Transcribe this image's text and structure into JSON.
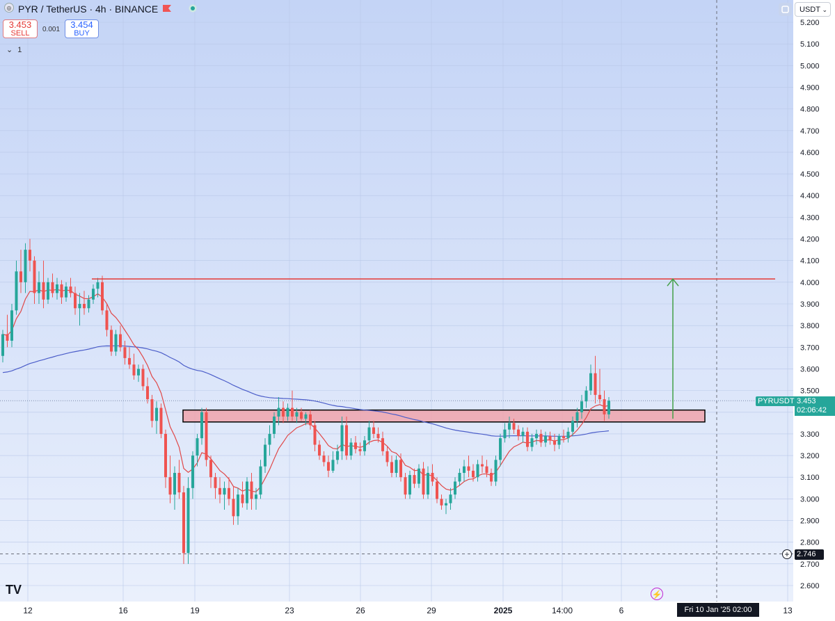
{
  "header": {
    "symbol": "PYR / TetherUS",
    "interval": "4h",
    "exchange": "BINANCE",
    "title_text": "PYR / TetherUS · 4h · BINANCE",
    "market_icon": "flag-icon",
    "status_icon": "market-open-dot-icon"
  },
  "trade": {
    "sell_price": "3.453",
    "sell_label": "SELL",
    "buy_price": "3.454",
    "buy_label": "BUY",
    "spread": "0.001"
  },
  "indicators_toggle": "1",
  "currency": "USDT",
  "symbol_tag": "PYRUSDT",
  "last_price": "3.453",
  "countdown": "02:06:42",
  "low_marker": "2.746",
  "crosshair_time": "Fri 10 Jan '25   02:00",
  "colors": {
    "up": "#26a69a",
    "down": "#ef5350",
    "ema_fast": "#e04848",
    "ema_slow": "#4b5dc9",
    "resistance": "#e53935",
    "target_arrow": "#43a047",
    "zone_fill": "#f0a3ab",
    "background_top": "#c4d4f6",
    "background_bottom": "#eaf0fc"
  },
  "chart_data": {
    "type": "candlestick",
    "ylim": [
      2.55,
      5.25
    ],
    "y_ticks": [
      "5.200",
      "5.100",
      "5.000",
      "4.900",
      "4.800",
      "4.700",
      "4.600",
      "4.500",
      "4.400",
      "4.300",
      "4.200",
      "4.100",
      "4.000",
      "3.900",
      "3.800",
      "3.700",
      "3.600",
      "3.500",
      "3.400",
      "3.300",
      "3.200",
      "3.100",
      "3.000",
      "2.900",
      "2.800",
      "2.700",
      "2.600"
    ],
    "x_ticks": [
      "12",
      "16",
      "19",
      "23",
      "26",
      "29",
      "2025",
      "14:00",
      "6",
      "13"
    ],
    "resistance_level": 4.015,
    "support_zone": [
      3.355,
      3.41
    ],
    "target_arrow": {
      "from": 3.37,
      "to": 4.015
    },
    "current_price": 3.453,
    "low_price": 2.746,
    "candles": [
      {
        "o": 3.66,
        "h": 3.78,
        "l": 3.63,
        "c": 3.76
      },
      {
        "o": 3.76,
        "h": 3.85,
        "l": 3.7,
        "c": 3.73
      },
      {
        "o": 3.73,
        "h": 3.9,
        "l": 3.7,
        "c": 3.87
      },
      {
        "o": 3.87,
        "h": 4.1,
        "l": 3.85,
        "c": 4.05
      },
      {
        "o": 4.05,
        "h": 4.15,
        "l": 3.95,
        "c": 4.0
      },
      {
        "o": 4.0,
        "h": 4.18,
        "l": 3.95,
        "c": 4.15
      },
      {
        "o": 4.15,
        "h": 4.2,
        "l": 4.05,
        "c": 4.1
      },
      {
        "o": 4.1,
        "h": 4.12,
        "l": 3.9,
        "c": 3.95
      },
      {
        "o": 3.95,
        "h": 4.05,
        "l": 3.9,
        "c": 4.0
      },
      {
        "o": 4.0,
        "h": 4.1,
        "l": 3.88,
        "c": 3.92
      },
      {
        "o": 3.92,
        "h": 4.02,
        "l": 3.9,
        "c": 4.0
      },
      {
        "o": 4.0,
        "h": 4.04,
        "l": 3.93,
        "c": 3.95
      },
      {
        "o": 3.95,
        "h": 4.02,
        "l": 3.92,
        "c": 3.99
      },
      {
        "o": 3.99,
        "h": 4.01,
        "l": 3.9,
        "c": 3.93
      },
      {
        "o": 3.93,
        "h": 4.0,
        "l": 3.91,
        "c": 3.98
      },
      {
        "o": 3.98,
        "h": 4.02,
        "l": 3.93,
        "c": 3.95
      },
      {
        "o": 3.95,
        "h": 3.98,
        "l": 3.85,
        "c": 3.88
      },
      {
        "o": 3.88,
        "h": 3.95,
        "l": 3.8,
        "c": 3.9
      },
      {
        "o": 3.9,
        "h": 3.96,
        "l": 3.85,
        "c": 3.88
      },
      {
        "o": 3.88,
        "h": 3.94,
        "l": 3.86,
        "c": 3.92
      },
      {
        "o": 3.92,
        "h": 3.99,
        "l": 3.9,
        "c": 3.97
      },
      {
        "o": 3.97,
        "h": 4.02,
        "l": 3.93,
        "c": 4.0
      },
      {
        "o": 4.0,
        "h": 4.03,
        "l": 3.85,
        "c": 3.87
      },
      {
        "o": 3.87,
        "h": 3.9,
        "l": 3.75,
        "c": 3.78
      },
      {
        "o": 3.78,
        "h": 3.8,
        "l": 3.66,
        "c": 3.68
      },
      {
        "o": 3.68,
        "h": 3.78,
        "l": 3.66,
        "c": 3.76
      },
      {
        "o": 3.76,
        "h": 3.8,
        "l": 3.68,
        "c": 3.7
      },
      {
        "o": 3.7,
        "h": 3.73,
        "l": 3.62,
        "c": 3.65
      },
      {
        "o": 3.65,
        "h": 3.7,
        "l": 3.6,
        "c": 3.62
      },
      {
        "o": 3.62,
        "h": 3.67,
        "l": 3.55,
        "c": 3.57
      },
      {
        "o": 3.57,
        "h": 3.62,
        "l": 3.54,
        "c": 3.6
      },
      {
        "o": 3.6,
        "h": 3.62,
        "l": 3.5,
        "c": 3.52
      },
      {
        "o": 3.52,
        "h": 3.56,
        "l": 3.44,
        "c": 3.46
      },
      {
        "o": 3.46,
        "h": 3.48,
        "l": 3.33,
        "c": 3.36
      },
      {
        "o": 3.36,
        "h": 3.45,
        "l": 3.3,
        "c": 3.42
      },
      {
        "o": 3.42,
        "h": 3.44,
        "l": 3.28,
        "c": 3.3
      },
      {
        "o": 3.3,
        "h": 3.32,
        "l": 3.05,
        "c": 3.1
      },
      {
        "o": 3.1,
        "h": 3.2,
        "l": 2.98,
        "c": 3.02
      },
      {
        "o": 3.02,
        "h": 3.15,
        "l": 2.95,
        "c": 3.12
      },
      {
        "o": 3.12,
        "h": 3.18,
        "l": 3.0,
        "c": 3.03
      },
      {
        "o": 3.03,
        "h": 3.06,
        "l": 2.7,
        "c": 2.75
      },
      {
        "o": 2.75,
        "h": 3.1,
        "l": 2.7,
        "c": 3.05
      },
      {
        "o": 3.05,
        "h": 3.22,
        "l": 3.0,
        "c": 3.2
      },
      {
        "o": 3.2,
        "h": 3.3,
        "l": 3.15,
        "c": 3.28
      },
      {
        "o": 3.28,
        "h": 3.42,
        "l": 3.25,
        "c": 3.4
      },
      {
        "o": 3.4,
        "h": 3.42,
        "l": 3.15,
        "c": 3.18
      },
      {
        "o": 3.18,
        "h": 3.2,
        "l": 3.05,
        "c": 3.1
      },
      {
        "o": 3.1,
        "h": 3.12,
        "l": 3.0,
        "c": 3.05
      },
      {
        "o": 3.05,
        "h": 3.1,
        "l": 2.98,
        "c": 3.02
      },
      {
        "o": 3.02,
        "h": 3.08,
        "l": 2.95,
        "c": 3.05
      },
      {
        "o": 3.05,
        "h": 3.1,
        "l": 2.97,
        "c": 3.0
      },
      {
        "o": 3.0,
        "h": 3.06,
        "l": 2.88,
        "c": 2.92
      },
      {
        "o": 2.92,
        "h": 3.05,
        "l": 2.88,
        "c": 3.02
      },
      {
        "o": 3.02,
        "h": 3.08,
        "l": 2.96,
        "c": 2.98
      },
      {
        "o": 2.98,
        "h": 3.1,
        "l": 2.95,
        "c": 3.08
      },
      {
        "o": 3.08,
        "h": 3.12,
        "l": 2.95,
        "c": 3.0
      },
      {
        "o": 3.0,
        "h": 3.05,
        "l": 2.95,
        "c": 3.02
      },
      {
        "o": 3.02,
        "h": 3.18,
        "l": 3.0,
        "c": 3.15
      },
      {
        "o": 3.15,
        "h": 3.28,
        "l": 3.12,
        "c": 3.25
      },
      {
        "o": 3.25,
        "h": 3.34,
        "l": 3.2,
        "c": 3.3
      },
      {
        "o": 3.3,
        "h": 3.4,
        "l": 3.28,
        "c": 3.38
      },
      {
        "o": 3.38,
        "h": 3.47,
        "l": 3.34,
        "c": 3.42
      },
      {
        "o": 3.42,
        "h": 3.45,
        "l": 3.35,
        "c": 3.38
      },
      {
        "o": 3.38,
        "h": 3.44,
        "l": 3.36,
        "c": 3.42
      },
      {
        "o": 3.42,
        "h": 3.5,
        "l": 3.36,
        "c": 3.38
      },
      {
        "o": 3.38,
        "h": 3.42,
        "l": 3.35,
        "c": 3.4
      },
      {
        "o": 3.4,
        "h": 3.42,
        "l": 3.36,
        "c": 3.37
      },
      {
        "o": 3.37,
        "h": 3.4,
        "l": 3.34,
        "c": 3.39
      },
      {
        "o": 3.39,
        "h": 3.41,
        "l": 3.32,
        "c": 3.34
      },
      {
        "o": 3.34,
        "h": 3.36,
        "l": 3.22,
        "c": 3.25
      },
      {
        "o": 3.25,
        "h": 3.27,
        "l": 3.18,
        "c": 3.2
      },
      {
        "o": 3.2,
        "h": 3.22,
        "l": 3.15,
        "c": 3.17
      },
      {
        "o": 3.17,
        "h": 3.2,
        "l": 3.1,
        "c": 3.13
      },
      {
        "o": 3.13,
        "h": 3.22,
        "l": 3.12,
        "c": 3.18
      },
      {
        "o": 3.18,
        "h": 3.25,
        "l": 3.16,
        "c": 3.22
      },
      {
        "o": 3.22,
        "h": 3.38,
        "l": 3.18,
        "c": 3.34
      },
      {
        "o": 3.34,
        "h": 3.38,
        "l": 3.18,
        "c": 3.2
      },
      {
        "o": 3.2,
        "h": 3.28,
        "l": 3.18,
        "c": 3.26
      },
      {
        "o": 3.26,
        "h": 3.29,
        "l": 3.21,
        "c": 3.23
      },
      {
        "o": 3.23,
        "h": 3.26,
        "l": 3.2,
        "c": 3.22
      },
      {
        "o": 3.22,
        "h": 3.29,
        "l": 3.2,
        "c": 3.27
      },
      {
        "o": 3.27,
        "h": 3.36,
        "l": 3.25,
        "c": 3.33
      },
      {
        "o": 3.33,
        "h": 3.36,
        "l": 3.28,
        "c": 3.3
      },
      {
        "o": 3.3,
        "h": 3.33,
        "l": 3.26,
        "c": 3.28
      },
      {
        "o": 3.28,
        "h": 3.31,
        "l": 3.2,
        "c": 3.22
      },
      {
        "o": 3.22,
        "h": 3.24,
        "l": 3.15,
        "c": 3.17
      },
      {
        "o": 3.17,
        "h": 3.2,
        "l": 3.1,
        "c": 3.12
      },
      {
        "o": 3.12,
        "h": 3.2,
        "l": 3.1,
        "c": 3.18
      },
      {
        "o": 3.18,
        "h": 3.21,
        "l": 3.08,
        "c": 3.1
      },
      {
        "o": 3.1,
        "h": 3.12,
        "l": 3.0,
        "c": 3.02
      },
      {
        "o": 3.02,
        "h": 3.13,
        "l": 3.0,
        "c": 3.11
      },
      {
        "o": 3.11,
        "h": 3.14,
        "l": 3.05,
        "c": 3.07
      },
      {
        "o": 3.07,
        "h": 3.16,
        "l": 3.05,
        "c": 3.14
      },
      {
        "o": 3.14,
        "h": 3.17,
        "l": 3.0,
        "c": 3.02
      },
      {
        "o": 3.02,
        "h": 3.15,
        "l": 3.0,
        "c": 3.12
      },
      {
        "o": 3.12,
        "h": 3.16,
        "l": 3.06,
        "c": 3.08
      },
      {
        "o": 3.08,
        "h": 3.1,
        "l": 2.98,
        "c": 3.0
      },
      {
        "o": 3.0,
        "h": 3.02,
        "l": 2.95,
        "c": 2.97
      },
      {
        "o": 2.97,
        "h": 3.0,
        "l": 2.93,
        "c": 2.98
      },
      {
        "o": 2.98,
        "h": 3.05,
        "l": 2.95,
        "c": 3.02
      },
      {
        "o": 3.02,
        "h": 3.1,
        "l": 3.0,
        "c": 3.08
      },
      {
        "o": 3.08,
        "h": 3.14,
        "l": 3.06,
        "c": 3.12
      },
      {
        "o": 3.12,
        "h": 3.18,
        "l": 3.08,
        "c": 3.15
      },
      {
        "o": 3.15,
        "h": 3.2,
        "l": 3.1,
        "c": 3.13
      },
      {
        "o": 3.13,
        "h": 3.16,
        "l": 3.08,
        "c": 3.1
      },
      {
        "o": 3.1,
        "h": 3.18,
        "l": 3.08,
        "c": 3.16
      },
      {
        "o": 3.16,
        "h": 3.2,
        "l": 3.12,
        "c": 3.15
      },
      {
        "o": 3.15,
        "h": 3.18,
        "l": 3.1,
        "c": 3.12
      },
      {
        "o": 3.12,
        "h": 3.14,
        "l": 3.06,
        "c": 3.08
      },
      {
        "o": 3.08,
        "h": 3.2,
        "l": 3.06,
        "c": 3.18
      },
      {
        "o": 3.18,
        "h": 3.3,
        "l": 3.15,
        "c": 3.28
      },
      {
        "o": 3.28,
        "h": 3.35,
        "l": 3.26,
        "c": 3.32
      },
      {
        "o": 3.32,
        "h": 3.38,
        "l": 3.28,
        "c": 3.35
      },
      {
        "o": 3.35,
        "h": 3.37,
        "l": 3.3,
        "c": 3.32
      },
      {
        "o": 3.32,
        "h": 3.34,
        "l": 3.27,
        "c": 3.29
      },
      {
        "o": 3.29,
        "h": 3.33,
        "l": 3.26,
        "c": 3.31
      },
      {
        "o": 3.31,
        "h": 3.33,
        "l": 3.22,
        "c": 3.24
      },
      {
        "o": 3.24,
        "h": 3.3,
        "l": 3.22,
        "c": 3.28
      },
      {
        "o": 3.28,
        "h": 3.32,
        "l": 3.25,
        "c": 3.3
      },
      {
        "o": 3.3,
        "h": 3.32,
        "l": 3.24,
        "c": 3.26
      },
      {
        "o": 3.26,
        "h": 3.31,
        "l": 3.24,
        "c": 3.29
      },
      {
        "o": 3.29,
        "h": 3.31,
        "l": 3.25,
        "c": 3.27
      },
      {
        "o": 3.27,
        "h": 3.3,
        "l": 3.22,
        "c": 3.25
      },
      {
        "o": 3.25,
        "h": 3.3,
        "l": 3.23,
        "c": 3.29
      },
      {
        "o": 3.29,
        "h": 3.32,
        "l": 3.26,
        "c": 3.28
      },
      {
        "o": 3.28,
        "h": 3.33,
        "l": 3.26,
        "c": 3.31
      },
      {
        "o": 3.31,
        "h": 3.38,
        "l": 3.29,
        "c": 3.36
      },
      {
        "o": 3.36,
        "h": 3.42,
        "l": 3.33,
        "c": 3.4
      },
      {
        "o": 3.4,
        "h": 3.48,
        "l": 3.37,
        "c": 3.45
      },
      {
        "o": 3.45,
        "h": 3.52,
        "l": 3.42,
        "c": 3.5
      },
      {
        "o": 3.5,
        "h": 3.62,
        "l": 3.48,
        "c": 3.58
      },
      {
        "o": 3.58,
        "h": 3.66,
        "l": 3.44,
        "c": 3.48
      },
      {
        "o": 3.48,
        "h": 3.6,
        "l": 3.44,
        "c": 3.46
      },
      {
        "o": 3.46,
        "h": 3.5,
        "l": 3.36,
        "c": 3.39
      },
      {
        "o": 3.39,
        "h": 3.47,
        "l": 3.37,
        "c": 3.453
      }
    ]
  }
}
